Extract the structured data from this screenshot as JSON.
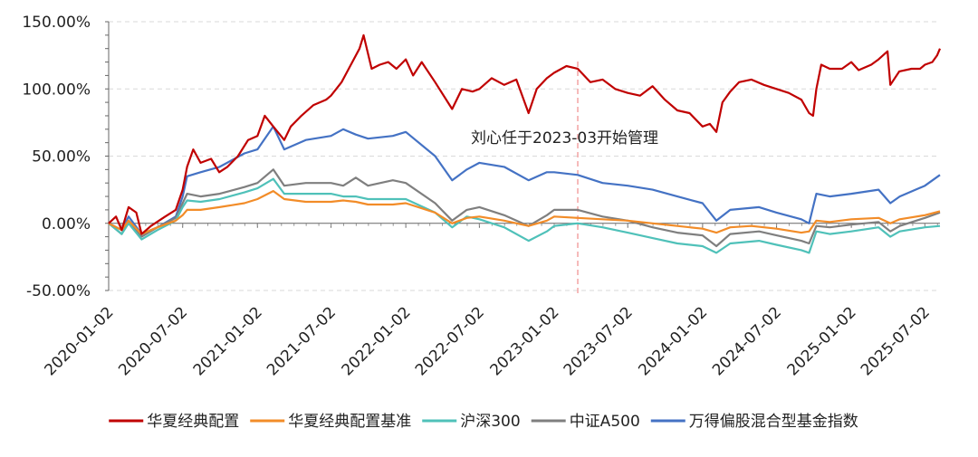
{
  "chart_data": {
    "type": "line",
    "y_axis": {
      "ticks": [
        -50,
        0,
        50,
        100,
        150
      ],
      "tick_labels": [
        "-50.00%",
        "0.00%",
        "50.00%",
        "100.00%",
        "150.00%"
      ],
      "ylim": [
        -50,
        150
      ],
      "unit": "%"
    },
    "x_axis": {
      "xlim": [
        "2020-01-02",
        "2025-08-08"
      ],
      "tick_labels": [
        "2020-01-02",
        "2020-07-02",
        "2021-01-02",
        "2021-07-02",
        "2022-01-02",
        "2022-07-02",
        "2023-01-02",
        "2023-07-02",
        "2024-01-02",
        "2024-07-02",
        "2025-01-02",
        "2025-07-02"
      ]
    },
    "grid": "horizontal dashed",
    "legend_position": "bottom",
    "annotation": {
      "text": "刘心任于2023-03开始管理",
      "date": "2023-03-01",
      "color": "#f4a9a9"
    },
    "series": [
      {
        "name": "华夏经典配置",
        "color": "#c00000",
        "x": [
          "2020-01-02",
          "2020-01-20",
          "2020-02-03",
          "2020-02-20",
          "2020-03-10",
          "2020-03-23",
          "2020-04-15",
          "2020-05-20",
          "2020-06-15",
          "2020-07-02",
          "2020-07-13",
          "2020-07-28",
          "2020-08-15",
          "2020-09-10",
          "2020-09-30",
          "2020-10-20",
          "2020-11-15",
          "2020-12-10",
          "2021-01-02",
          "2021-01-20",
          "2021-02-10",
          "2021-03-09",
          "2021-03-25",
          "2021-04-20",
          "2021-05-20",
          "2021-06-20",
          "2021-07-02",
          "2021-07-28",
          "2021-08-20",
          "2021-09-10",
          "2021-09-20",
          "2021-10-10",
          "2021-10-30",
          "2021-11-20",
          "2021-12-10",
          "2022-01-02",
          "2022-01-20",
          "2022-02-10",
          "2022-03-15",
          "2022-04-26",
          "2022-05-20",
          "2022-06-15",
          "2022-07-02",
          "2022-08-01",
          "2022-09-01",
          "2022-10-01",
          "2022-10-31",
          "2022-11-20",
          "2022-12-15",
          "2023-01-02",
          "2023-02-01",
          "2023-03-01",
          "2023-04-01",
          "2023-05-01",
          "2023-06-01",
          "2023-07-02",
          "2023-08-01",
          "2023-09-01",
          "2023-10-01",
          "2023-11-01",
          "2023-12-01",
          "2024-01-02",
          "2024-01-20",
          "2024-02-05",
          "2024-02-20",
          "2024-03-10",
          "2024-04-01",
          "2024-05-01",
          "2024-06-01",
          "2024-07-02",
          "2024-08-01",
          "2024-09-01",
          "2024-09-20",
          "2024-09-30",
          "2024-10-08",
          "2024-10-20",
          "2024-11-10",
          "2024-12-10",
          "2025-01-02",
          "2025-01-20",
          "2025-02-20",
          "2025-03-10",
          "2025-04-01",
          "2025-04-08",
          "2025-04-30",
          "2025-05-30",
          "2025-06-20",
          "2025-07-02",
          "2025-07-20",
          "2025-08-01",
          "2025-08-08"
        ],
        "values": [
          0,
          5,
          -5,
          12,
          8,
          -8,
          -2,
          5,
          10,
          25,
          42,
          55,
          45,
          48,
          38,
          42,
          50,
          62,
          65,
          80,
          72,
          62,
          72,
          80,
          88,
          92,
          95,
          105,
          118,
          130,
          140,
          115,
          118,
          120,
          115,
          122,
          110,
          120,
          105,
          85,
          100,
          98,
          100,
          108,
          103,
          107,
          82,
          100,
          108,
          112,
          117,
          115,
          105,
          107,
          100,
          97,
          95,
          102,
          92,
          84,
          82,
          72,
          74,
          68,
          90,
          98,
          105,
          107,
          103,
          100,
          97,
          92,
          82,
          80,
          100,
          118,
          115,
          115,
          120,
          114,
          118,
          122,
          128,
          103,
          113,
          115,
          115,
          118,
          120,
          125,
          130
        ]
      },
      {
        "name": "华夏经典配置基准",
        "color": "#f28c28",
        "x": [
          "2020-01-02",
          "2020-02-03",
          "2020-02-20",
          "2020-03-23",
          "2020-05-01",
          "2020-06-15",
          "2020-07-02",
          "2020-07-13",
          "2020-08-15",
          "2020-10-01",
          "2020-12-01",
          "2021-01-02",
          "2021-02-10",
          "2021-03-09",
          "2021-05-01",
          "2021-07-02",
          "2021-08-01",
          "2021-09-01",
          "2021-10-01",
          "2021-12-01",
          "2022-01-02",
          "2022-03-15",
          "2022-04-26",
          "2022-06-01",
          "2022-07-02",
          "2022-09-01",
          "2022-10-31",
          "2022-12-15",
          "2023-01-02",
          "2023-03-01",
          "2023-05-01",
          "2023-07-02",
          "2023-09-01",
          "2023-11-01",
          "2024-01-02",
          "2024-02-05",
          "2024-03-10",
          "2024-05-01",
          "2024-07-02",
          "2024-09-01",
          "2024-09-20",
          "2024-10-08",
          "2024-11-10",
          "2025-01-02",
          "2025-03-10",
          "2025-04-08",
          "2025-05-01",
          "2025-07-02",
          "2025-08-08"
        ],
        "values": [
          0,
          -5,
          2,
          -8,
          -3,
          2,
          6,
          10,
          10,
          12,
          15,
          18,
          24,
          18,
          16,
          16,
          17,
          16,
          14,
          14,
          15,
          8,
          0,
          4,
          5,
          2,
          -2,
          2,
          5,
          4,
          3,
          2,
          0,
          -2,
          -4,
          -7,
          -3,
          -2,
          -4,
          -7,
          -6,
          2,
          1,
          3,
          4,
          0,
          3,
          6,
          9
        ]
      },
      {
        "name": "沪深300",
        "color": "#4fc1b9",
        "x": [
          "2020-01-02",
          "2020-02-03",
          "2020-02-20",
          "2020-03-23",
          "2020-05-01",
          "2020-06-15",
          "2020-07-02",
          "2020-07-13",
          "2020-08-15",
          "2020-10-01",
          "2020-12-01",
          "2021-01-02",
          "2021-02-10",
          "2021-03-09",
          "2021-05-01",
          "2021-07-02",
          "2021-08-01",
          "2021-09-01",
          "2021-10-01",
          "2021-12-01",
          "2022-01-02",
          "2022-03-15",
          "2022-04-26",
          "2022-06-01",
          "2022-07-02",
          "2022-09-01",
          "2022-10-31",
          "2022-12-15",
          "2023-01-02",
          "2023-03-01",
          "2023-05-01",
          "2023-07-02",
          "2023-09-01",
          "2023-11-01",
          "2024-01-02",
          "2024-02-05",
          "2024-03-10",
          "2024-05-20",
          "2024-07-02",
          "2024-09-01",
          "2024-09-20",
          "2024-10-08",
          "2024-11-10",
          "2025-01-02",
          "2025-03-10",
          "2025-04-08",
          "2025-05-01",
          "2025-07-02",
          "2025-08-08"
        ],
        "values": [
          0,
          -8,
          0,
          -12,
          -5,
          2,
          12,
          17,
          16,
          18,
          23,
          26,
          33,
          22,
          22,
          22,
          20,
          20,
          18,
          18,
          18,
          8,
          -3,
          5,
          3,
          -3,
          -13,
          -6,
          -2,
          0,
          -3,
          -7,
          -11,
          -15,
          -17,
          -22,
          -15,
          -13,
          -16,
          -20,
          -22,
          -6,
          -8,
          -6,
          -3,
          -10,
          -6,
          -3,
          -2
        ]
      },
      {
        "name": "中证A500",
        "color": "#7f7f7f",
        "x": [
          "2020-01-02",
          "2020-02-03",
          "2020-02-20",
          "2020-03-23",
          "2020-05-01",
          "2020-06-15",
          "2020-07-02",
          "2020-07-13",
          "2020-08-15",
          "2020-10-01",
          "2020-12-01",
          "2021-01-02",
          "2021-02-10",
          "2021-03-09",
          "2021-05-01",
          "2021-07-02",
          "2021-08-01",
          "2021-09-01",
          "2021-10-01",
          "2021-12-01",
          "2022-01-02",
          "2022-03-15",
          "2022-04-26",
          "2022-06-01",
          "2022-07-02",
          "2022-09-01",
          "2022-10-31",
          "2022-12-15",
          "2023-01-02",
          "2023-03-01",
          "2023-05-01",
          "2023-07-02",
          "2023-09-01",
          "2023-11-01",
          "2024-01-02",
          "2024-02-05",
          "2024-03-10",
          "2024-05-20",
          "2024-07-02",
          "2024-09-01",
          "2024-09-20",
          "2024-10-08",
          "2024-11-10",
          "2025-01-02",
          "2025-03-10",
          "2025-04-08",
          "2025-05-01",
          "2025-07-02",
          "2025-08-08"
        ],
        "values": [
          0,
          -8,
          2,
          -10,
          -3,
          4,
          15,
          22,
          20,
          22,
          27,
          30,
          40,
          28,
          30,
          30,
          28,
          34,
          28,
          32,
          30,
          15,
          2,
          10,
          12,
          6,
          -2,
          6,
          10,
          10,
          5,
          2,
          -3,
          -7,
          -9,
          -17,
          -8,
          -6,
          -9,
          -13,
          -15,
          -2,
          -3,
          -1,
          1,
          -6,
          -2,
          4,
          8
        ]
      },
      {
        "name": "万得偏股混合型基金指数",
        "color": "#4472c4",
        "x": [
          "2020-01-02",
          "2020-02-03",
          "2020-02-20",
          "2020-03-23",
          "2020-05-01",
          "2020-06-15",
          "2020-07-02",
          "2020-07-13",
          "2020-08-15",
          "2020-10-01",
          "2020-12-01",
          "2021-01-02",
          "2021-02-10",
          "2021-03-09",
          "2021-05-01",
          "2021-07-02",
          "2021-08-01",
          "2021-09-01",
          "2021-10-01",
          "2021-12-01",
          "2022-01-02",
          "2022-03-15",
          "2022-04-26",
          "2022-06-01",
          "2022-07-02",
          "2022-09-01",
          "2022-10-31",
          "2022-12-15",
          "2023-01-02",
          "2023-03-01",
          "2023-05-01",
          "2023-07-02",
          "2023-09-01",
          "2023-11-01",
          "2024-01-02",
          "2024-02-05",
          "2024-03-10",
          "2024-05-20",
          "2024-07-02",
          "2024-09-01",
          "2024-09-20",
          "2024-10-08",
          "2024-11-10",
          "2025-01-02",
          "2025-03-10",
          "2025-04-08",
          "2025-05-01",
          "2025-07-02",
          "2025-08-08"
        ],
        "values": [
          0,
          -5,
          5,
          -8,
          -3,
          5,
          20,
          35,
          38,
          42,
          52,
          55,
          72,
          55,
          62,
          65,
          70,
          66,
          63,
          65,
          68,
          50,
          32,
          40,
          45,
          42,
          32,
          38,
          38,
          36,
          30,
          28,
          25,
          20,
          15,
          2,
          10,
          12,
          8,
          3,
          0,
          22,
          20,
          22,
          25,
          15,
          20,
          28,
          36
        ]
      }
    ]
  }
}
